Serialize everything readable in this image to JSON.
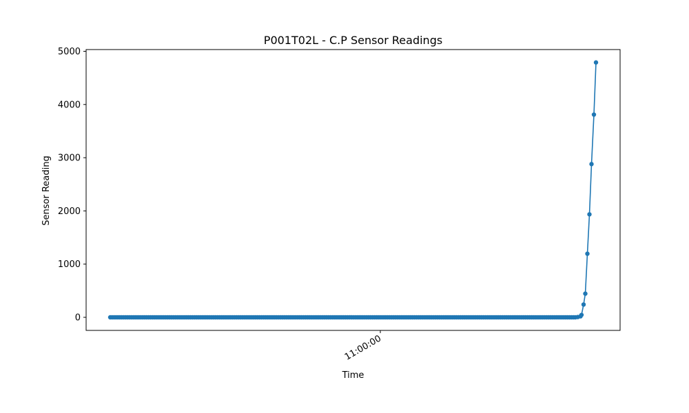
{
  "chart_data": {
    "type": "line",
    "title": "P001T02L - C.P Sensor Readings",
    "xlabel": "Time",
    "ylabel": "Sensor Reading",
    "ylim": [
      -250,
      5000
    ],
    "y_ticks": [
      0,
      1000,
      2000,
      3000,
      4000,
      5000
    ],
    "x_tick_labels": [
      "11:00:00"
    ],
    "grid": false,
    "legend": "none",
    "colors": {
      "series": "#1f77b4",
      "axes": "#000000",
      "background": "#ffffff"
    },
    "series": [
      {
        "marker": "circle",
        "baseline_point_count": 244,
        "baseline_value": 0,
        "rise_values": [
          5,
          18,
          45,
          240,
          445,
          1195,
          1935,
          2880,
          3810,
          4790
        ]
      }
    ]
  }
}
